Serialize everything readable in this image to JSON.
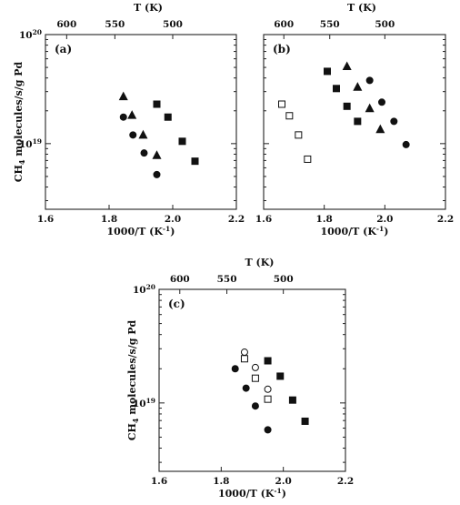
{
  "chart_data": [
    {
      "type": "scatter",
      "panel_label": "(a)",
      "xlabel": "1000/T (K",
      "xlabel_sup": "-1",
      "xlabel_tail": ")",
      "ylabel": "CH",
      "ylabel_sub": "4",
      "ylabel_tail": " molecules/s/g Pd",
      "top_axis_title": "T (K)",
      "xlim": [
        1.6,
        2.2
      ],
      "ylim": [
        2.5e+18,
        1e+20
      ],
      "yscale": "log",
      "x_ticks": [
        1.6,
        1.8,
        2.0,
        2.2
      ],
      "x_tick_labels": [
        "1.6",
        "1.8",
        "2.0",
        "2.2"
      ],
      "top_ticks": [
        600,
        550,
        500
      ],
      "top_tick_labels": [
        "600",
        "550",
        "500"
      ],
      "y_tick_labels": [
        {
          "base": "10",
          "exp": "20",
          "value": 1e+20
        },
        {
          "base": "10",
          "exp": "19",
          "value": 1e+19
        }
      ],
      "series": [
        {
          "marker": "triangle",
          "filled": true,
          "points": [
            [
              1.845,
              2.7e+19
            ],
            [
              1.872,
              1.82e+19
            ],
            [
              1.907,
              1.2e+19
            ],
            [
              1.95,
              7.8e+18
            ]
          ]
        },
        {
          "marker": "circle",
          "filled": true,
          "points": [
            [
              1.845,
              1.75e+19
            ],
            [
              1.875,
              1.2e+19
            ],
            [
              1.91,
              8.2e+18
            ],
            [
              1.95,
              5.2e+18
            ]
          ]
        },
        {
          "marker": "square",
          "filled": true,
          "points": [
            [
              1.95,
              2.3e+19
            ],
            [
              1.985,
              1.75e+19
            ],
            [
              2.03,
              1.05e+19
            ],
            [
              2.07,
              6.9e+18
            ]
          ]
        }
      ]
    },
    {
      "type": "scatter",
      "panel_label": "(b)",
      "xlabel": "1000/T (K",
      "xlabel_sup": "-1",
      "xlabel_tail": ")",
      "top_axis_title": "T (K)",
      "xlim": [
        1.6,
        2.2
      ],
      "ylim": [
        2.5e+18,
        1e+20
      ],
      "yscale": "log",
      "x_ticks": [
        1.6,
        1.8,
        2.0,
        2.2
      ],
      "x_tick_labels": [
        "1.6",
        "1.8",
        "2.0",
        "2.2"
      ],
      "top_ticks": [
        600,
        550,
        500
      ],
      "top_tick_labels": [
        "600",
        "550",
        "500"
      ],
      "series": [
        {
          "marker": "square",
          "filled": false,
          "points": [
            [
              1.66,
              2.3e+19
            ],
            [
              1.685,
              1.8e+19
            ],
            [
              1.715,
              1.2e+19
            ],
            [
              1.745,
              7.2e+18
            ]
          ]
        },
        {
          "marker": "square",
          "filled": true,
          "points": [
            [
              1.81,
              4.6e+19
            ],
            [
              1.84,
              3.2e+19
            ],
            [
              1.875,
              2.2e+19
            ],
            [
              1.91,
              1.6e+19
            ]
          ]
        },
        {
          "marker": "triangle",
          "filled": true,
          "points": [
            [
              1.875,
              5.1e+19
            ],
            [
              1.91,
              3.3e+19
            ],
            [
              1.95,
              2.1e+19
            ],
            [
              1.985,
              1.35e+19
            ]
          ]
        },
        {
          "marker": "circle",
          "filled": true,
          "points": [
            [
              1.95,
              3.8e+19
            ],
            [
              1.99,
              2.4e+19
            ],
            [
              2.03,
              1.6e+19
            ],
            [
              2.07,
              9.8e+18
            ]
          ]
        }
      ]
    },
    {
      "type": "scatter",
      "panel_label": "(c)",
      "xlabel": "1000/T (K",
      "xlabel_sup": "-1",
      "xlabel_tail": ")",
      "ylabel": "CH",
      "ylabel_sub": "4",
      "ylabel_tail": " molecules/s/g Pd",
      "top_axis_title": "T (K)",
      "xlim": [
        1.6,
        2.2
      ],
      "ylim": [
        2.5e+18,
        1e+20
      ],
      "yscale": "log",
      "x_ticks": [
        1.6,
        1.8,
        2.0,
        2.2
      ],
      "x_tick_labels": [
        "1.6",
        "1.8",
        "2.0",
        "2.2"
      ],
      "top_ticks": [
        600,
        550,
        500
      ],
      "top_tick_labels": [
        "600",
        "550",
        "500"
      ],
      "y_tick_labels": [
        {
          "base": "10",
          "exp": "20",
          "value": 1e+20
        },
        {
          "base": "10",
          "exp": "19",
          "value": 1e+19
        }
      ],
      "series": [
        {
          "marker": "circle",
          "filled": true,
          "points": [
            [
              1.845,
              2e+19
            ],
            [
              1.88,
              1.35e+19
            ],
            [
              1.91,
              9.4e+18
            ],
            [
              1.95,
              5.8e+18
            ]
          ]
        },
        {
          "marker": "circle",
          "filled": false,
          "points": [
            [
              1.875,
              2.8e+19
            ],
            [
              1.91,
              2.05e+19
            ],
            [
              1.95,
              1.32e+19
            ]
          ]
        },
        {
          "marker": "square",
          "filled": false,
          "points": [
            [
              1.875,
              2.45e+19
            ],
            [
              1.91,
              1.65e+19
            ],
            [
              1.95,
              1.08e+19
            ]
          ]
        },
        {
          "marker": "square",
          "filled": true,
          "points": [
            [
              1.95,
              2.35e+19
            ],
            [
              1.99,
              1.72e+19
            ],
            [
              2.03,
              1.06e+19
            ],
            [
              2.07,
              6.9e+18
            ]
          ]
        }
      ]
    }
  ]
}
